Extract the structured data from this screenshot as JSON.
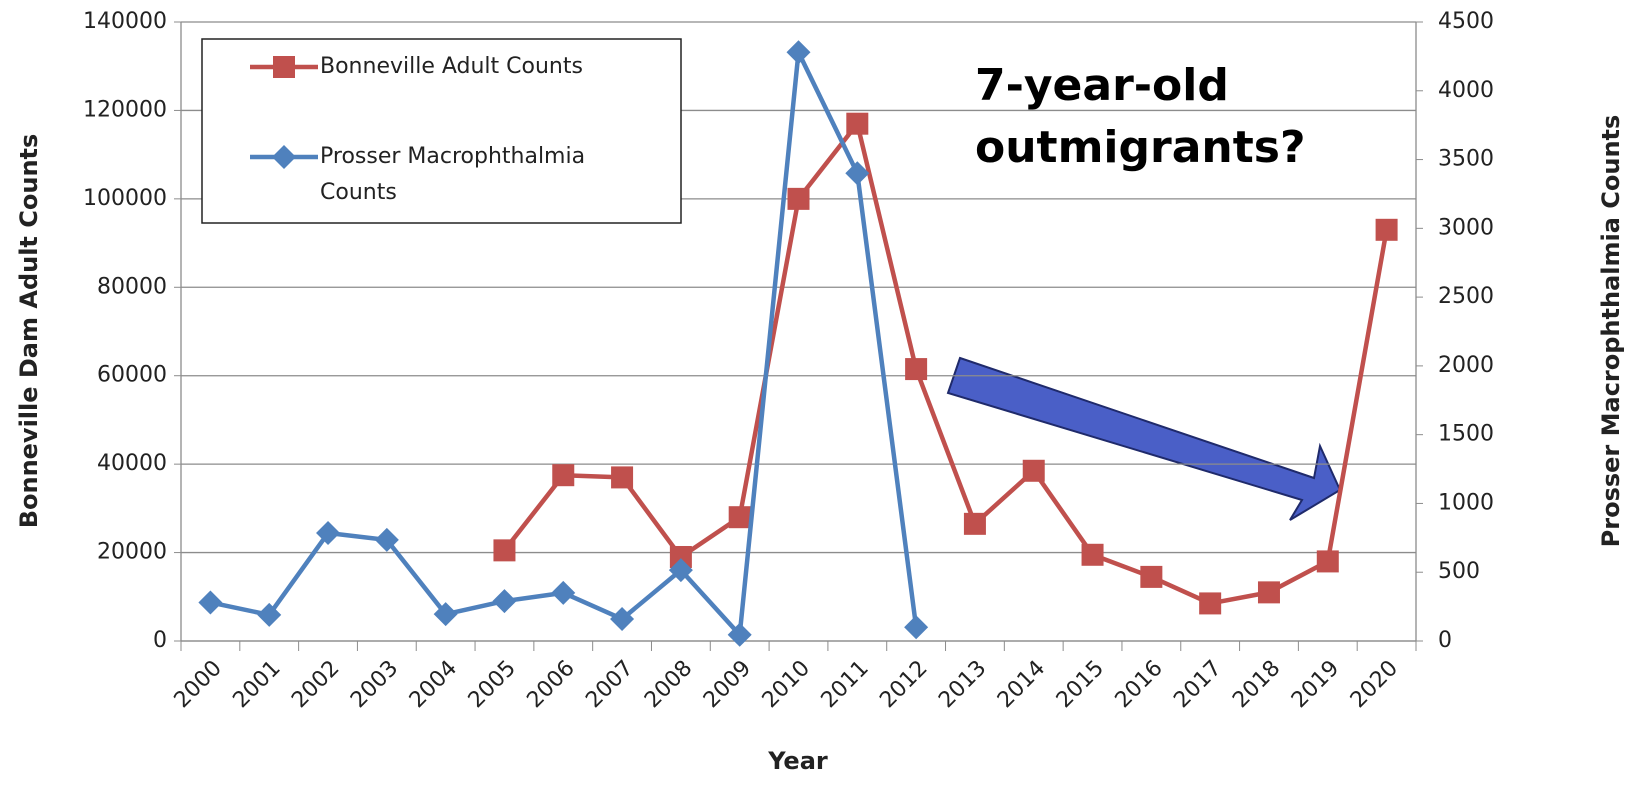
{
  "chart_data": {
    "type": "line",
    "categories": [
      "2000",
      "2001",
      "2002",
      "2003",
      "2004",
      "2005",
      "2006",
      "2007",
      "2008",
      "2009",
      "2010",
      "2011",
      "2012",
      "2013",
      "2014",
      "2015",
      "2016",
      "2017",
      "2018",
      "2019",
      "2020"
    ],
    "series": [
      {
        "name": "Bonneville Adult Counts",
        "color": "#c0504d",
        "marker": "square",
        "values": [
          null,
          null,
          null,
          null,
          null,
          20500,
          37500,
          37000,
          19000,
          28000,
          100000,
          117000,
          61500,
          26500,
          38500,
          19500,
          14500,
          8500,
          11000,
          18000,
          93000
        ]
      },
      {
        "name": "Prosser Macrophthalmia Counts",
        "color": "#4f81bd",
        "marker": "diamond",
        "axis": "y2",
        "values": [
          280,
          190,
          785,
          735,
          195,
          290,
          350,
          160,
          515,
          45,
          4280,
          3400,
          100,
          null,
          null,
          null,
          null,
          null,
          null,
          null,
          null
        ]
      }
    ],
    "xlabel": "Year",
    "ylabel": "Bonneville Dam Adult Counts",
    "y2label": "Prosser Macrophthalmia Counts",
    "ylim": [
      0,
      140000
    ],
    "yticks": [
      0,
      20000,
      40000,
      60000,
      80000,
      100000,
      120000,
      140000
    ],
    "y2lim": [
      0,
      4500
    ],
    "y2ticks": [
      0,
      500,
      1000,
      1500,
      2000,
      2500,
      3000,
      3500,
      4000,
      4500
    ],
    "grid": true,
    "legend": "upper left",
    "annotations": [
      "7-year-old",
      "outmigrants?"
    ]
  }
}
